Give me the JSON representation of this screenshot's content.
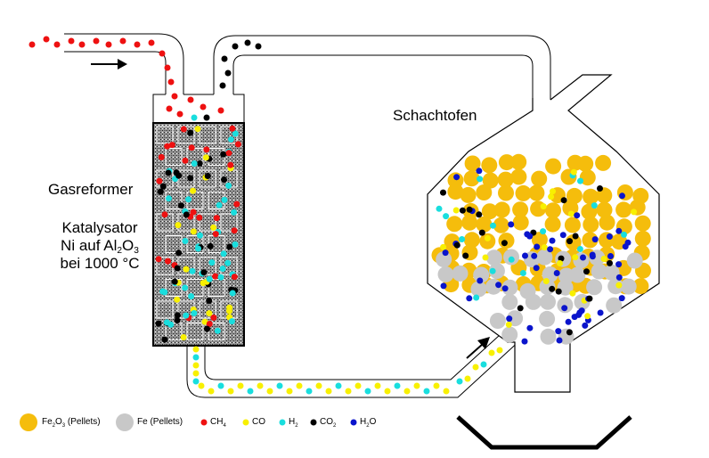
{
  "labels": {
    "furnace": "Schachtofen",
    "reformer": "Gasreformer",
    "catalyst_line1": "Katalysator",
    "catalyst_line2_prefix": "Ni auf Al",
    "catalyst_line2_sub1": "2",
    "catalyst_line2_mid": "O",
    "catalyst_line2_sub2": "3",
    "catalyst_line3": "bei 1000 °C"
  },
  "legend": {
    "fe2o3_prefix": "Fe",
    "fe2o3_sub1": "2",
    "fe2o3_mid": "O",
    "fe2o3_sub2": "3",
    "fe2o3_suffix": " (Pellets)",
    "fe": "Fe (Pellets)",
    "ch4_prefix": "CH",
    "ch4_sub": "4",
    "co": "CO",
    "h2_prefix": "H",
    "h2_sub": "2",
    "co2_prefix": "CO",
    "co2_sub": "2",
    "h2o_prefix": "H",
    "h2o_sub": "2",
    "h2o_suffix": "O"
  },
  "colors": {
    "fe2o3": "#f5bd0c",
    "fe": "#c8c8c8",
    "ch4": "#ee1111",
    "co": "#f8f000",
    "h2": "#19dede",
    "co2": "#000000",
    "h2o": "#0a14cc",
    "pipe_stroke": "#000000",
    "catalyst_bg": "#8a8a8a"
  }
}
